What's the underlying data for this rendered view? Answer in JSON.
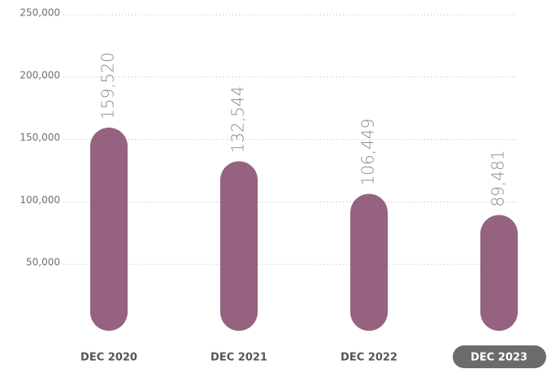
{
  "chart_data": {
    "type": "bar",
    "categories": [
      "DEC 2020",
      "DEC 2021",
      "DEC 2022",
      "DEC 2023"
    ],
    "values": [
      159520,
      132544,
      106449,
      89481
    ],
    "value_labels": [
      "159,520",
      "132,544",
      "106,449",
      "89,481"
    ],
    "color": "#95627f",
    "highlighted_index": 3,
    "highlight_color": "#6b6b6b",
    "ylim": [
      0,
      250000
    ],
    "yticks": [
      {
        "value": 50000,
        "label": "50,000"
      },
      {
        "value": 100000,
        "label": "100,000"
      },
      {
        "value": 150000,
        "label": "150,000"
      },
      {
        "value": 200000,
        "label": "200,000"
      },
      {
        "value": 250000,
        "label": "250,000"
      }
    ],
    "grid": true
  }
}
